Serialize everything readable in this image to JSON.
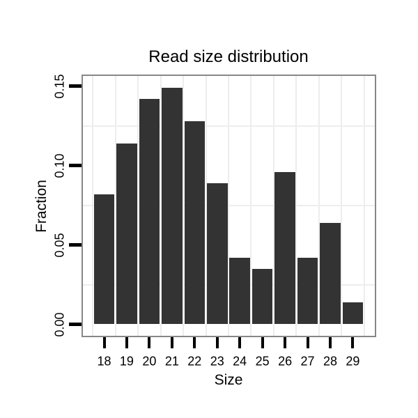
{
  "chart_data": {
    "type": "bar",
    "title": "Read size distribution",
    "xlabel": "Size",
    "ylabel": "Fraction",
    "categories": [
      "18",
      "19",
      "20",
      "21",
      "22",
      "23",
      "24",
      "25",
      "26",
      "27",
      "28",
      "29"
    ],
    "values": [
      0.082,
      0.114,
      0.142,
      0.149,
      0.128,
      0.089,
      0.042,
      0.035,
      0.096,
      0.042,
      0.064,
      0.014
    ],
    "y_tick_values": [
      0,
      0.05,
      0.1,
      0.15
    ],
    "y_tick_labels": [
      "0.00",
      "0.05",
      "0.10",
      "0.15"
    ],
    "ylim": [
      -0.0073,
      0.1563
    ],
    "legend": "none",
    "grid": {
      "horizontal_minor_values": [
        0.025,
        0.075,
        0.125
      ],
      "vertical_minor_between_categories": true,
      "major_gridlines_visible": false
    },
    "colors": {
      "bar_fill": "#333333",
      "panel_border": "#878787",
      "gridline": "#ededed",
      "tick": "#000000",
      "text": "#000000",
      "background": "#ffffff"
    }
  }
}
